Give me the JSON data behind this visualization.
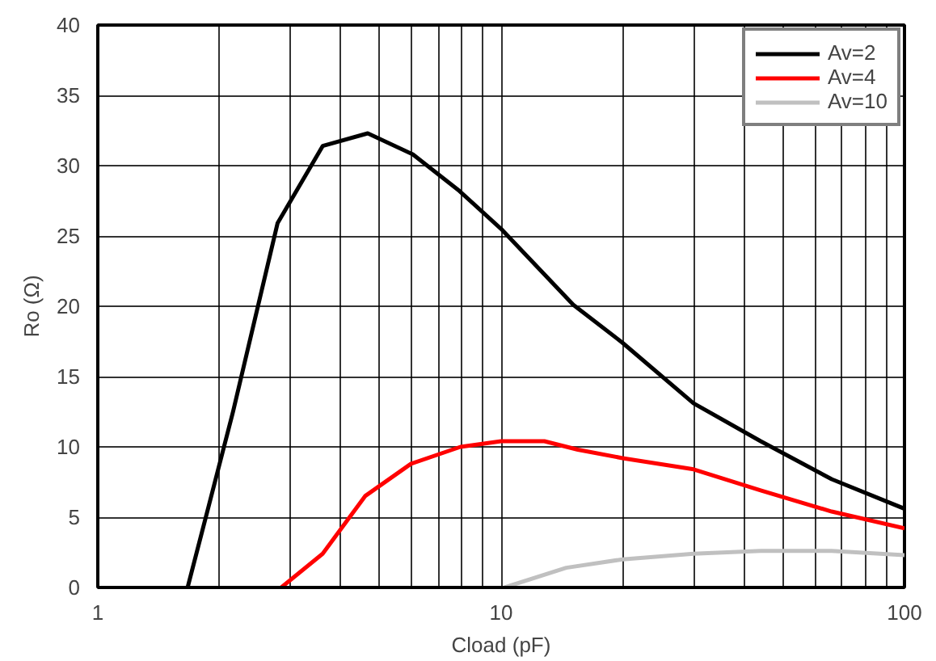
{
  "chart_data": {
    "type": "line",
    "xlabel": "Cload (pF)",
    "ylabel": "Ro (Ω)",
    "log": "x",
    "xlim": [
      1,
      100
    ],
    "ylim": [
      0,
      40
    ],
    "xticks": [
      1,
      {
        "value": 2,
        "label": null
      },
      {
        "value": 3,
        "label": null
      },
      {
        "value": 4,
        "label": null
      },
      {
        "value": 5,
        "label": null
      },
      {
        "value": 6,
        "label": null
      },
      {
        "value": 7,
        "label": null
      },
      {
        "value": 8,
        "label": null
      },
      {
        "value": 9,
        "label": null
      },
      10,
      {
        "value": 20,
        "label": null
      },
      {
        "value": 30,
        "label": null
      },
      {
        "value": 40,
        "label": null
      },
      {
        "value": 50,
        "label": null
      },
      {
        "value": 60,
        "label": null
      },
      {
        "value": 70,
        "label": null
      },
      {
        "value": 80,
        "label": null
      },
      {
        "value": 90,
        "label": null
      },
      100
    ],
    "yticks": [
      0,
      5,
      10,
      15,
      20,
      25,
      30,
      35,
      40
    ],
    "grid": true,
    "legend": "top right",
    "line_style": "solid",
    "series": [
      {
        "name": "Av=2",
        "color": "#000000",
        "x": [
          1.67,
          2.16,
          2.79,
          3.61,
          4.67,
          6.04,
          7.88,
          10,
          15.1,
          20,
          30,
          44,
          66,
          100
        ],
        "values": [
          0,
          12.4,
          25.9,
          31.4,
          32.3,
          30.8,
          28.2,
          25.5,
          20.1,
          17.4,
          13.1,
          10.4,
          7.7,
          5.6
        ]
      },
      {
        "name": "Av=4",
        "color": "#ff0000",
        "x": [
          2.85,
          3.61,
          4.6,
          5.98,
          7.93,
          10,
          12.8,
          15.5,
          20,
          30,
          44,
          66,
          100
        ],
        "values": [
          0,
          2.4,
          6.5,
          8.8,
          10.0,
          10.4,
          10.4,
          9.8,
          9.2,
          8.4,
          6.9,
          5.4,
          4.2
        ]
      },
      {
        "name": "Av=10",
        "color": "#c0c0c0",
        "x": [
          10.2,
          14.5,
          20,
          30,
          44,
          66,
          100
        ],
        "values": [
          0,
          1.4,
          2.0,
          2.4,
          2.6,
          2.6,
          2.3
        ]
      }
    ]
  }
}
